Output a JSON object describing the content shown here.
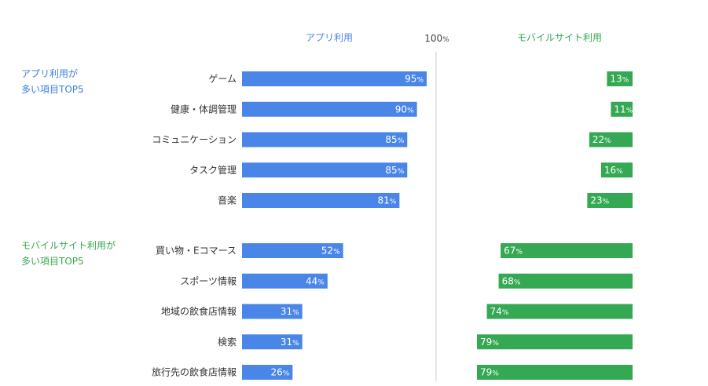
{
  "chart_data": {
    "type": "bar",
    "subtype": "diverging-horizontal",
    "headers": {
      "left": "アプリ利用",
      "center": "100",
      "center_unit": "%",
      "right": "モバイルサイト利用"
    },
    "x_max": 100,
    "unit": "%",
    "groups": [
      {
        "label_lines": [
          "アプリ利用が",
          "多い項目TOP5"
        ],
        "color": "#3b80e0",
        "categories": [
          "ゲーム",
          "健康・体調管理",
          "コミュニケーション",
          "タスク管理",
          "音楽"
        ],
        "app": [
          95,
          90,
          85,
          85,
          81
        ],
        "mobile_site": [
          13,
          11,
          22,
          16,
          23
        ]
      },
      {
        "label_lines": [
          "モバイルサイト利用が",
          "多い項目TOP5"
        ],
        "color": "#3aa84f",
        "categories": [
          "買い物・Eコマース",
          "スポーツ情報",
          "地域の飲食店情報",
          "検索",
          "旅行先の飲食店情報"
        ],
        "app": [
          52,
          44,
          31,
          31,
          26
        ],
        "mobile_site": [
          67,
          68,
          74,
          79,
          79
        ]
      }
    ],
    "series": [
      {
        "name": "アプリ利用",
        "color": "#4a86e8"
      },
      {
        "name": "モバイルサイト利用",
        "color": "#34a853"
      }
    ]
  }
}
